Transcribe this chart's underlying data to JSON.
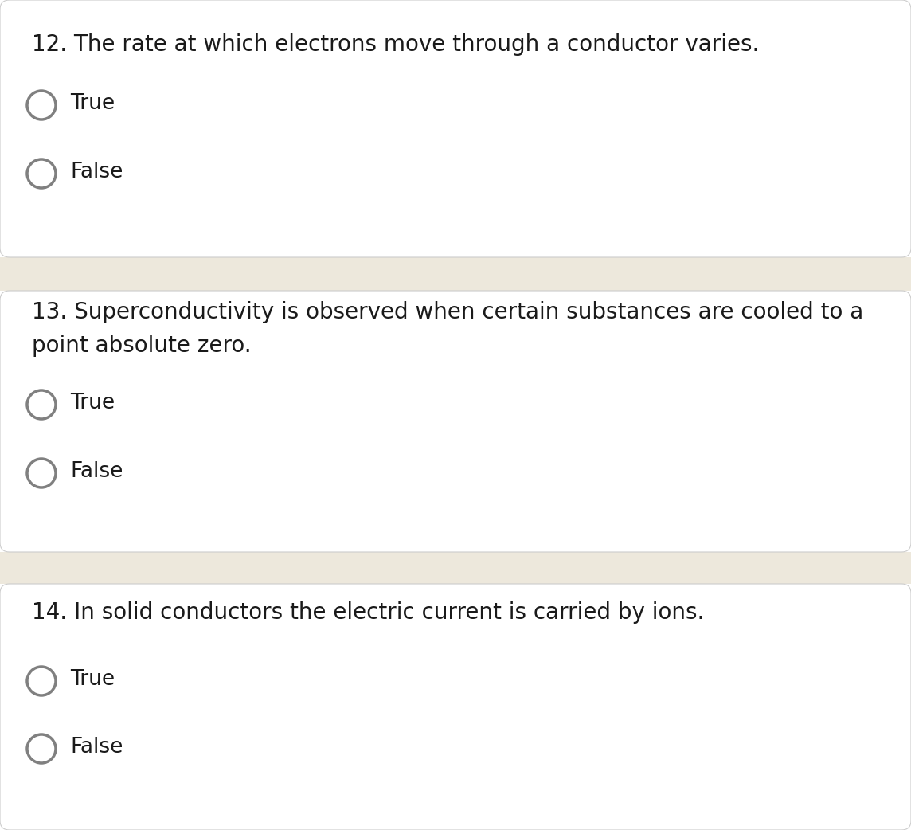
{
  "bg_color": "#ffffff",
  "separator_color": "#ede8dc",
  "text_color": "#1a1a1a",
  "circle_edge_color": "#808080",
  "questions": [
    {
      "number": "12.",
      "text": "The rate at which electrons move through a conductor varies.",
      "text_line2": null,
      "options": [
        "True",
        "False"
      ]
    },
    {
      "number": "13.",
      "text": "Superconductivity is observed when certain substances are cooled to a",
      "text_line2": "point absolute zero.",
      "options": [
        "True",
        "False"
      ]
    },
    {
      "number": "14.",
      "text": "In solid conductors the electric current is carried by ions.",
      "text_line2": null,
      "options": [
        "True",
        "False"
      ]
    }
  ],
  "font_size_question": 20,
  "font_size_option": 19,
  "fig_width": 11.44,
  "fig_height": 10.42,
  "dpi": 100
}
